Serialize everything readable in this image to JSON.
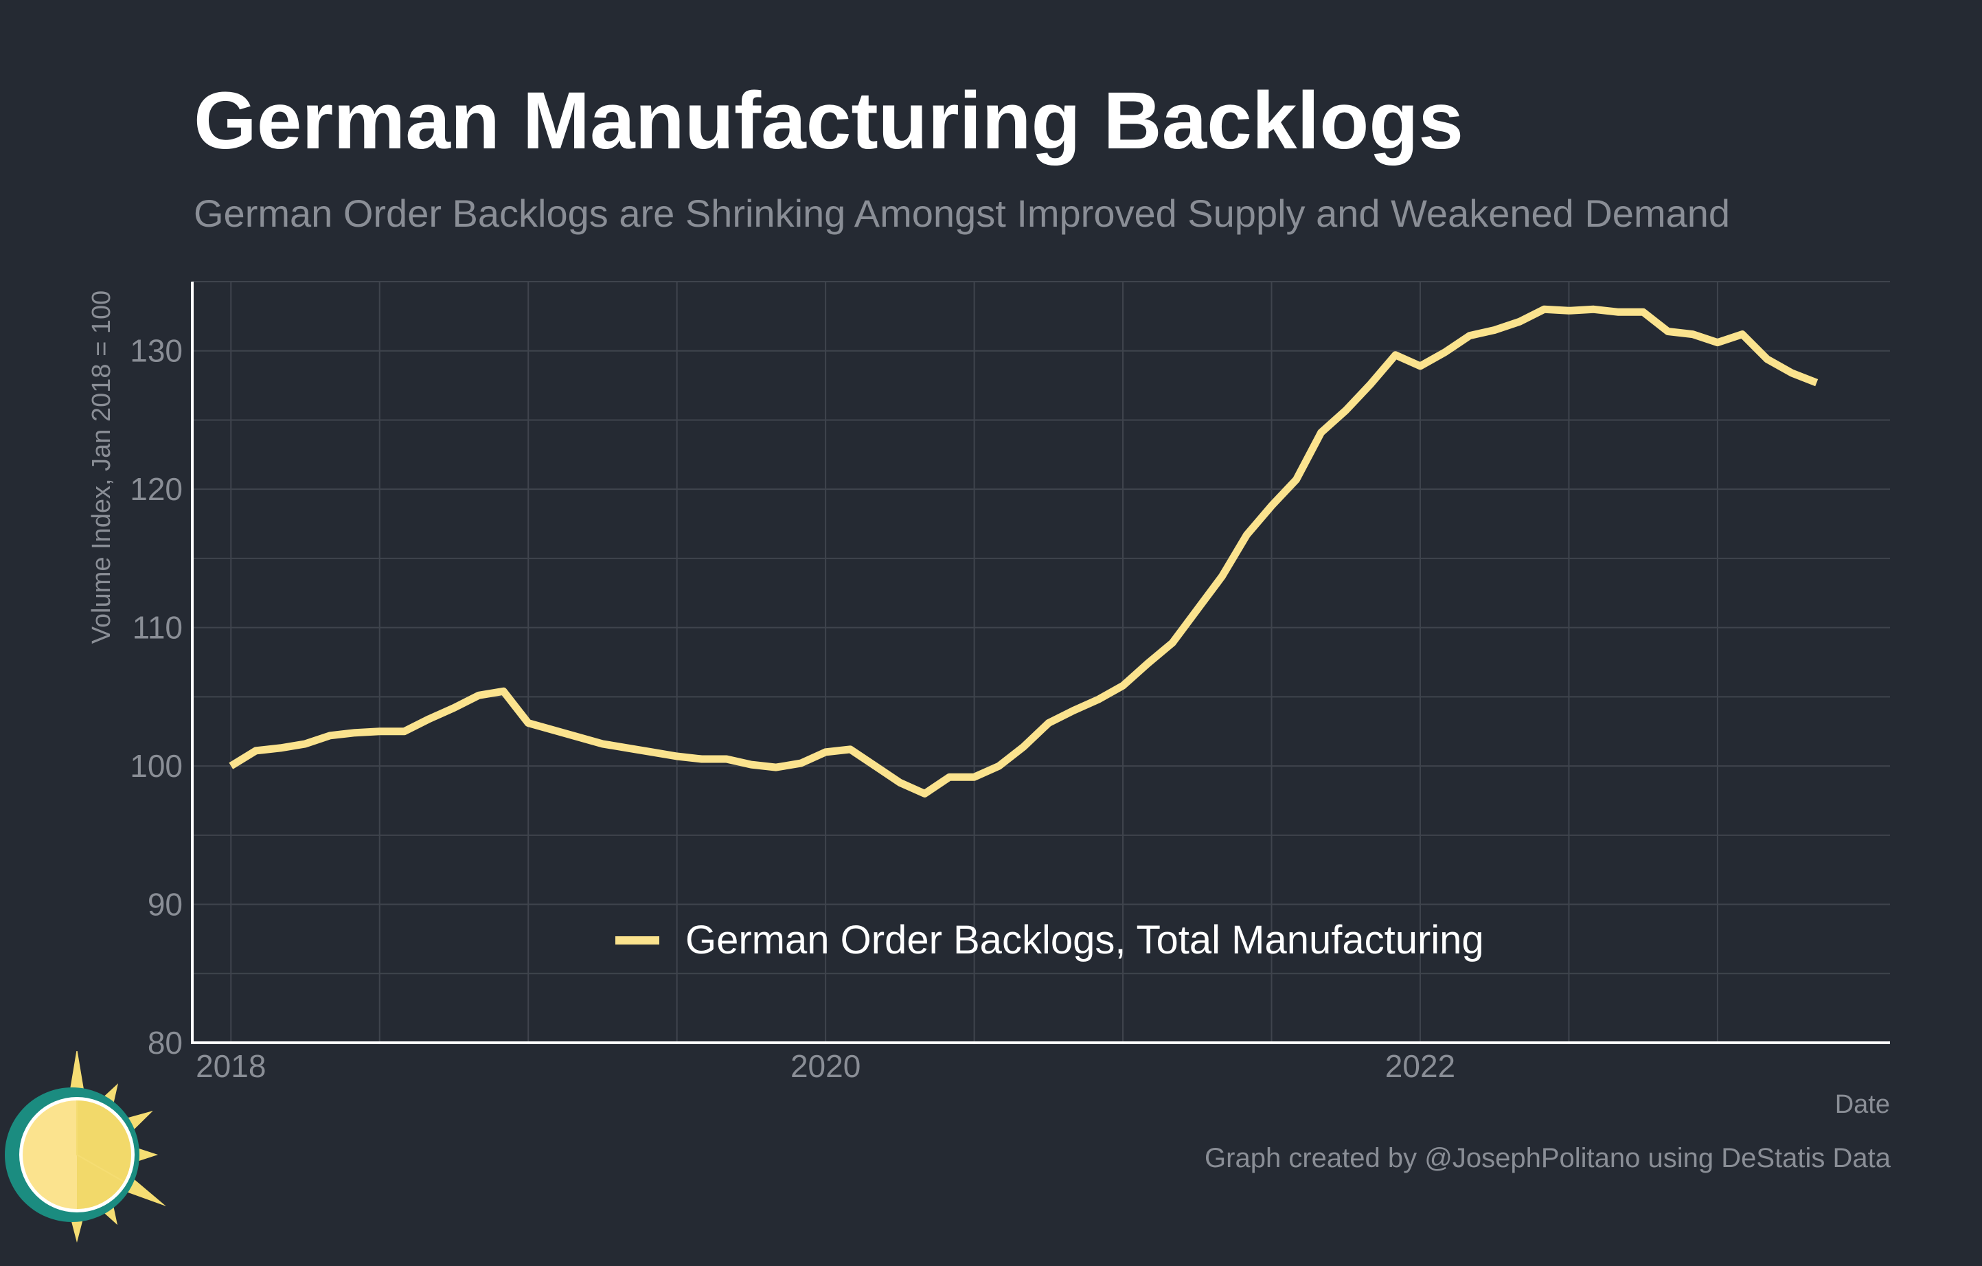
{
  "title": "German Manufacturing Backlogs",
  "subtitle": "German Order Backlogs are Shrinking Amongst Improved Supply and Weakened Demand",
  "source": "Graph created by @JosephPolitano using DeStatis Data",
  "colors": {
    "background": "#252a33",
    "line": "#fbe38e",
    "grid": "#3f444d",
    "axis": "#ffffff",
    "muted_text": "#8a8e96"
  },
  "logo": {
    "icon": "sun-icon"
  },
  "chart_data": {
    "type": "line",
    "xlabel": "Date",
    "ylabel": "Volume Index, Jan 2018 = 100",
    "ylim": [
      80,
      135
    ],
    "xlim": [
      2017.87,
      2023.58
    ],
    "yticks": [
      80,
      90,
      100,
      110,
      120,
      130
    ],
    "ytick_labels": [
      "80",
      "90",
      "100",
      "110",
      "120",
      "130"
    ],
    "xticks": [
      2018,
      2020,
      2022
    ],
    "xtick_labels": [
      "2018",
      "2020",
      "2022"
    ],
    "grid": true,
    "legend": {
      "position": "bottom-center"
    },
    "series": [
      {
        "name": "German Order Backlogs, Total Manufacturing",
        "x": [
          "2018-01",
          "2018-02",
          "2018-03",
          "2018-04",
          "2018-05",
          "2018-06",
          "2018-07",
          "2018-08",
          "2018-09",
          "2018-10",
          "2018-11",
          "2018-12",
          "2019-01",
          "2019-02",
          "2019-03",
          "2019-04",
          "2019-05",
          "2019-06",
          "2019-07",
          "2019-08",
          "2019-09",
          "2019-10",
          "2019-11",
          "2019-12",
          "2020-01",
          "2020-02",
          "2020-03",
          "2020-04",
          "2020-05",
          "2020-06",
          "2020-07",
          "2020-08",
          "2020-09",
          "2020-10",
          "2020-11",
          "2020-12",
          "2021-01",
          "2021-02",
          "2021-03",
          "2021-04",
          "2021-05",
          "2021-06",
          "2021-07",
          "2021-08",
          "2021-09",
          "2021-10",
          "2021-11",
          "2021-12",
          "2022-01",
          "2022-02",
          "2022-03",
          "2022-04",
          "2022-05",
          "2022-06",
          "2022-07",
          "2022-08",
          "2022-09",
          "2022-10",
          "2022-11",
          "2022-12",
          "2023-01",
          "2023-02",
          "2023-03",
          "2023-04",
          "2023-05"
        ],
        "y": [
          100.0,
          101.1,
          101.3,
          101.6,
          102.2,
          102.4,
          102.5,
          102.5,
          103.4,
          104.2,
          105.1,
          105.4,
          103.1,
          102.6,
          102.1,
          101.6,
          101.3,
          101.0,
          100.7,
          100.5,
          100.5,
          100.1,
          99.9,
          100.2,
          101.0,
          101.2,
          100.0,
          98.8,
          98.0,
          99.2,
          99.2,
          100.0,
          101.4,
          103.1,
          104.0,
          104.8,
          105.8,
          107.4,
          108.9,
          111.3,
          113.7,
          116.7,
          118.8,
          120.7,
          124.1,
          125.7,
          127.6,
          129.7,
          128.9,
          129.9,
          131.1,
          131.5,
          132.1,
          133.0,
          132.9,
          133.0,
          132.8,
          132.8,
          131.4,
          131.2,
          130.6,
          131.2,
          129.4,
          128.4,
          127.7
        ]
      }
    ]
  }
}
